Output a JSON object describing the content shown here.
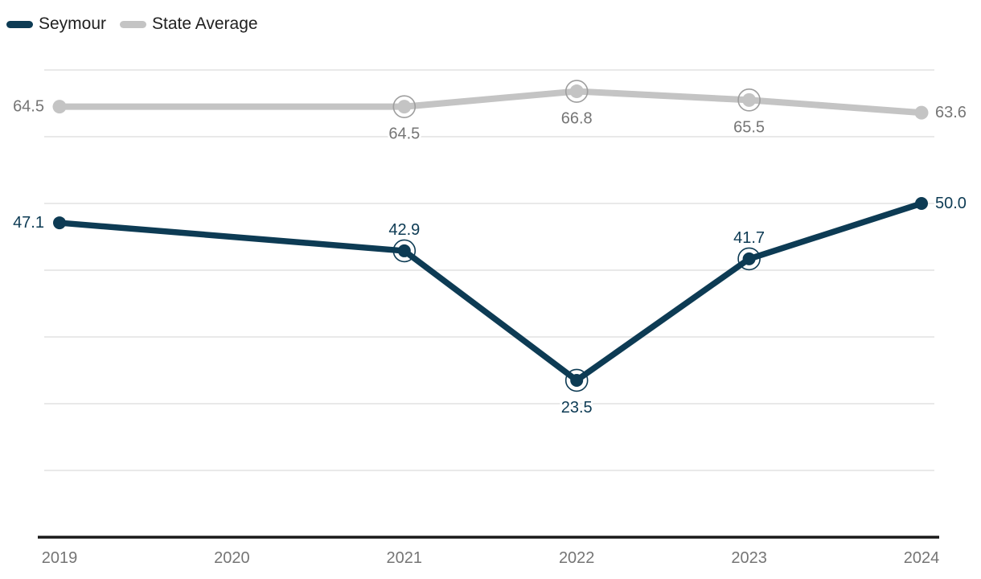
{
  "chart_data": {
    "type": "line",
    "x": [
      "2019",
      "2020",
      "2021",
      "2022",
      "2023",
      "2024"
    ],
    "ylim": [
      0,
      70
    ],
    "grid": {
      "step": 10,
      "visible": true
    },
    "gridline_color": "#e9e9e9",
    "axis": {
      "color": "#1a1a1a",
      "tick_label_color": "#757575"
    },
    "legend_position": "top-left",
    "series": [
      {
        "name": "Seymour",
        "color": "#0d3b54",
        "label_color": "#0d3b54",
        "ring_color": "#0d3b54",
        "line_width": 7.5,
        "dot_radius": 8,
        "values": [
          47.1,
          null,
          42.9,
          23.5,
          41.7,
          50.0
        ],
        "labels": [
          "47.1",
          null,
          "42.9",
          "23.5",
          "41.7",
          "50.0"
        ],
        "label_placement": [
          "left",
          null,
          "top",
          "bottom",
          "top",
          "right"
        ],
        "ringed": [
          false,
          null,
          true,
          true,
          true,
          false
        ]
      },
      {
        "name": "State Average",
        "color": "#c4c4c4",
        "label_color": "#757575",
        "ring_color": "#9e9e9e",
        "line_width": 8,
        "dot_radius": 8.5,
        "values": [
          64.5,
          null,
          64.5,
          66.8,
          65.5,
          63.6
        ],
        "labels": [
          "64.5",
          null,
          "64.5",
          "66.8",
          "65.5",
          "63.6"
        ],
        "label_placement": [
          "left",
          null,
          "bottom",
          "bottom",
          "bottom",
          "right"
        ],
        "ringed": [
          false,
          null,
          true,
          true,
          true,
          false
        ]
      }
    ]
  }
}
